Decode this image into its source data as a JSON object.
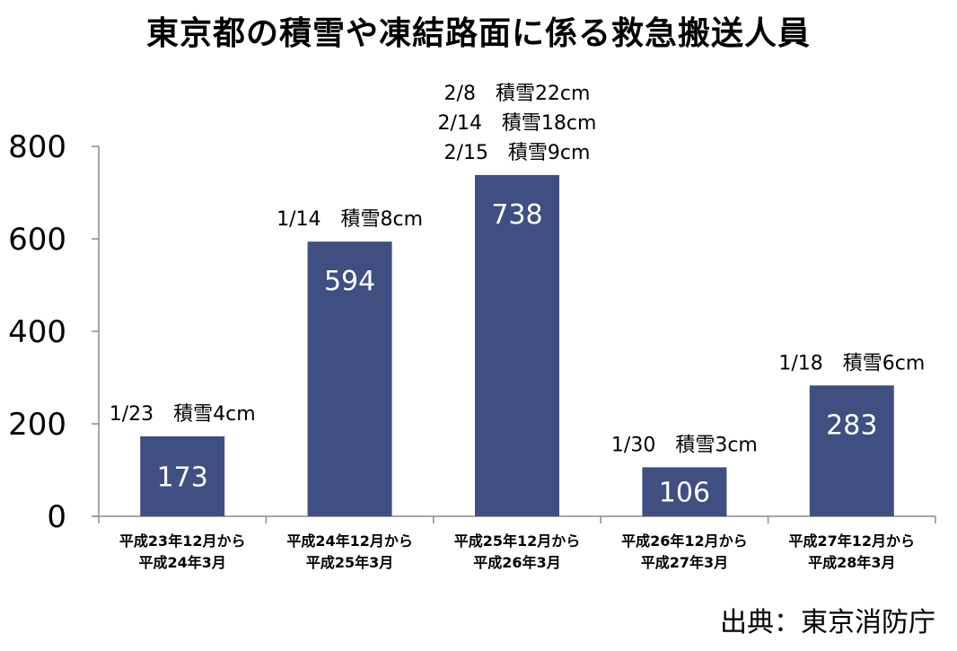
{
  "chart_data": {
    "type": "bar",
    "title": "東京都の積雪や凍結路面に係る救急搬送人員",
    "categories": [
      [
        "平成23年12月から",
        "平成24年3月"
      ],
      [
        "平成24年12月から",
        "平成25年3月"
      ],
      [
        "平成25年12月から",
        "平成26年3月"
      ],
      [
        "平成26年12月から",
        "平成27年3月"
      ],
      [
        "平成27年12月から",
        "平成28年3月"
      ]
    ],
    "values": [
      173,
      594,
      738,
      106,
      283
    ],
    "annotations": [
      [
        "1/23　積雪4cm"
      ],
      [
        "1/14　積雪8cm"
      ],
      [
        "2/8　積雪22cm",
        "2/14　積雪18cm",
        "2/15　積雪9cm"
      ],
      [
        "1/30　積雪3cm"
      ],
      [
        "1/18　積雪6cm"
      ]
    ],
    "yticks": [
      0,
      200,
      400,
      600,
      800
    ],
    "ylim": [
      0,
      800
    ],
    "grid": false,
    "legend": "none",
    "bar_color": "#3f4f82"
  },
  "source": "出典：東京消防庁"
}
